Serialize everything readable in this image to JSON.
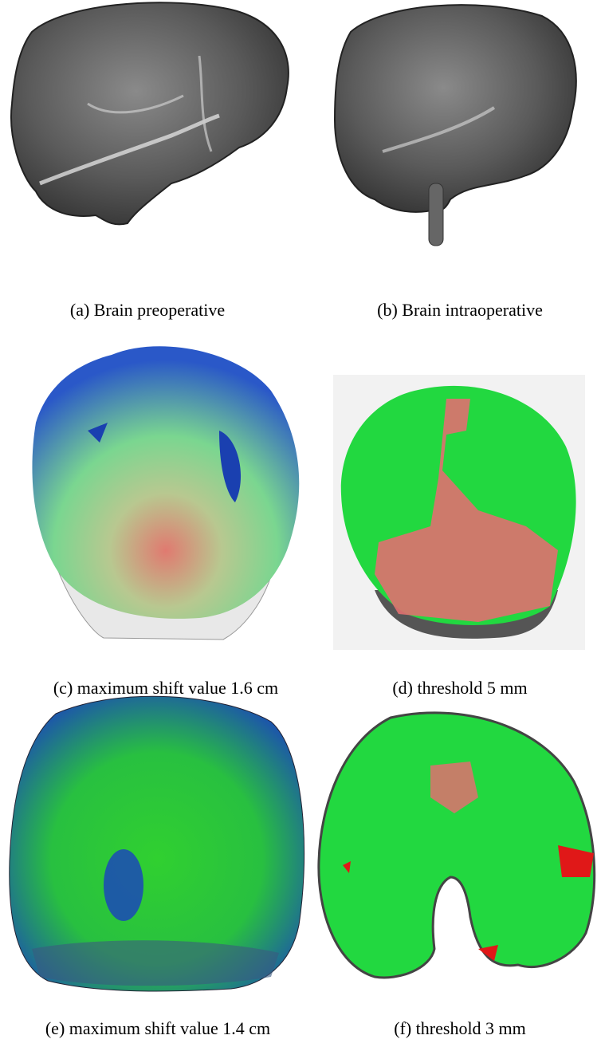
{
  "figure": {
    "panels": [
      {
        "caption": "(a) Brain preoperative"
      },
      {
        "caption": "(b) Brain intraoperative"
      },
      {
        "caption": "(c) maximum shift value 1.6 cm"
      },
      {
        "caption": "(d) threshold 5 mm"
      },
      {
        "caption": "(e) maximum shift value 1.4 cm"
      },
      {
        "caption": "(f) threshold 3 mm"
      }
    ]
  }
}
